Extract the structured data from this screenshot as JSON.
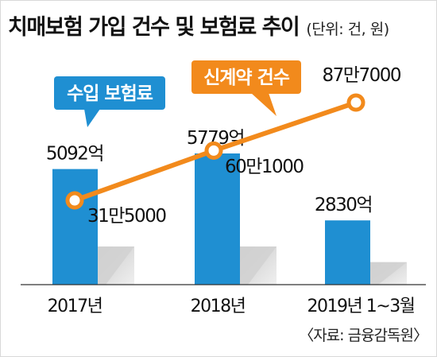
{
  "chart_data": {
    "type": "bar+line",
    "title": "치매보험 가입 건수 및 보험료 추이",
    "unit_note": "(단위: 건, 원)",
    "categories": [
      "2017년",
      "2018년",
      "2019년 1~3월"
    ],
    "series": [
      {
        "name": "수입 보험료",
        "chart": "bar",
        "values": [
          509200000000,
          577900000000,
          283000000000
        ],
        "labels": [
          "5092억",
          "5779억",
          "2830억"
        ],
        "color": "#1f8fd2"
      },
      {
        "name": "신계약 건수",
        "chart": "line",
        "values": [
          315000,
          601000,
          877000
        ],
        "labels": [
          "31만5000",
          "60만1000",
          "87만7000"
        ],
        "color": "#f28a1c"
      }
    ],
    "source": "〈자료: 금융감독원〉",
    "legend": "callouts",
    "grid": false
  }
}
